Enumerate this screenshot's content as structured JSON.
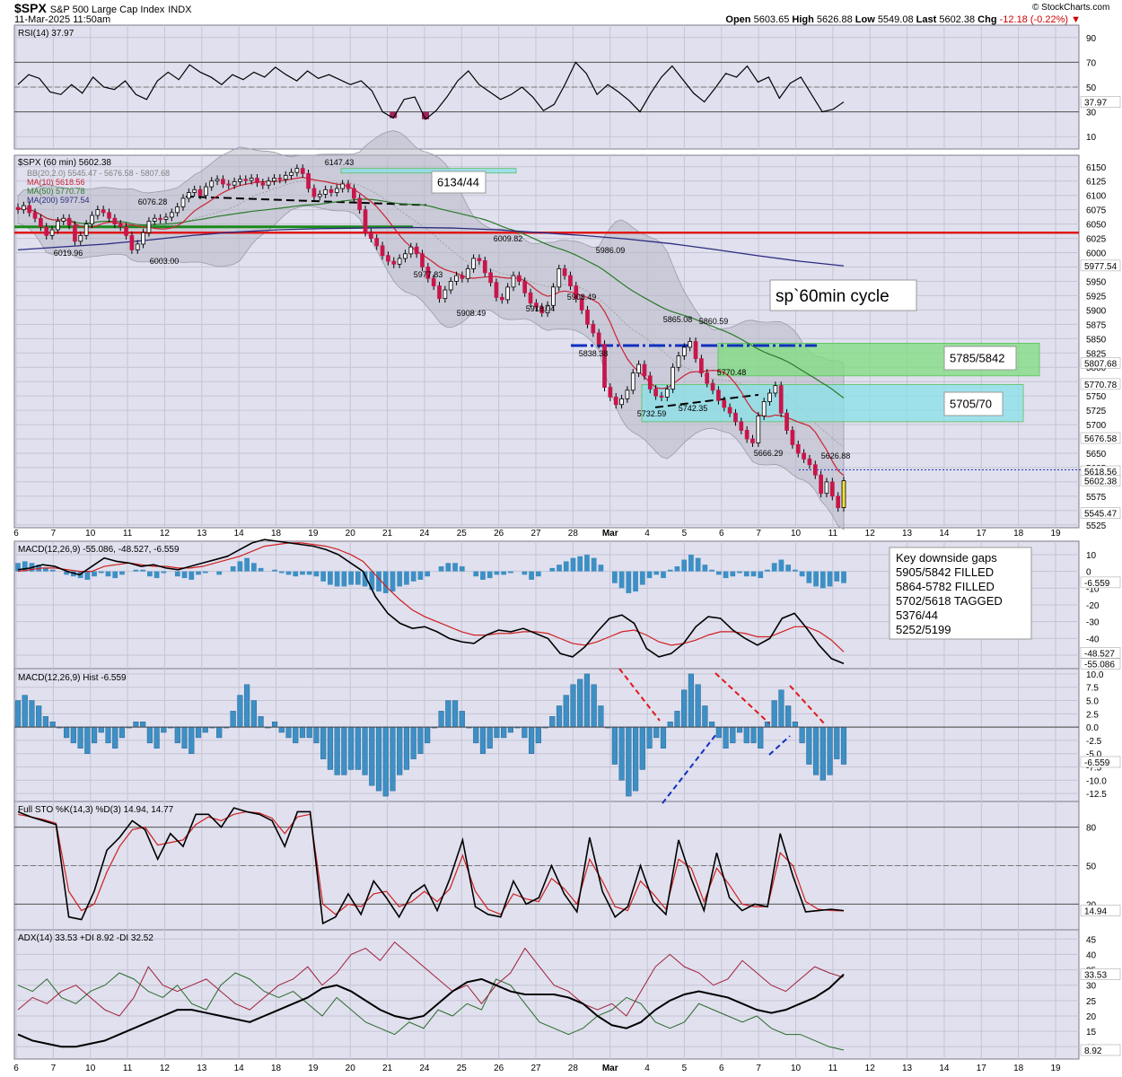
{
  "header": {
    "symbol": "$SPX",
    "name": "S&P 500 Large Cap Index",
    "exchange": "INDX",
    "datetime": "11-Mar-2025 11:50am",
    "open_label": "Open",
    "open": "5603.65",
    "high_label": "High",
    "high": "5626.88",
    "low_label": "Low",
    "low": "5549.08",
    "last_label": "Last",
    "last": "5602.38",
    "chg_label": "Chg",
    "chg": "-12.18 (-0.22%)",
    "copyright": "© StockCharts.com"
  },
  "x_axis_labels": [
    "6",
    "7",
    "10",
    "11",
    "12",
    "13",
    "14",
    "18",
    "19",
    "20",
    "21",
    "24",
    "25",
    "26",
    "27",
    "28",
    "Mar",
    "4",
    "5",
    "6",
    "7",
    "10",
    "11",
    "12",
    "13",
    "14",
    "17",
    "18",
    "19"
  ],
  "colors": {
    "panel_bg": "#e0e0ee",
    "grid": "#c4c4d4",
    "up_candle": "#ffffff",
    "down_candle": "#c8164a",
    "ma10": "#cc2233",
    "ma50": "#2a7a2a",
    "ma200": "#2b2b80",
    "red_level": "#e01818",
    "green_level": "#1a8a1a",
    "blue_level": "#1030c0",
    "hist_bar": "#3d8fc4",
    "green_zone": "#7ddd7d",
    "cyan_zone": "#8ae2e8",
    "rsi_fill": "#a0235a"
  },
  "panels": {
    "rsi": {
      "title": "RSI(14) 37.97",
      "ticks": [
        "90",
        "70",
        "50",
        "30",
        "10"
      ],
      "last_label": "37.97"
    },
    "price": {
      "title": "$SPX (60 min) 5602.38",
      "legend": [
        {
          "text": "BB(20,2.0) 5545.47 - 5676.58 - 5807.68",
          "color": "#808080"
        },
        {
          "text": "MA(10) 5618.56",
          "color": "#cc2233"
        },
        {
          "text": "MA(50) 5770.78",
          "color": "#2a7a2a"
        },
        {
          "text": "MA(200) 5977.54",
          "color": "#2b2b80"
        }
      ],
      "ticks": [
        "6150",
        "6125",
        "6100",
        "6075",
        "6050",
        "6025",
        "6000",
        "5975",
        "5950",
        "5925",
        "5900",
        "5875",
        "5850",
        "5825",
        "5800",
        "5775",
        "5750",
        "5725",
        "5700",
        "5675",
        "5650",
        "5625",
        "5600",
        "5575",
        "5550",
        "5525"
      ],
      "right_labels": [
        "5977.54",
        "5807.68",
        "5770.78",
        "5676.58",
        "5618.56",
        "5602.38",
        "5545.47"
      ],
      "annotations": {
        "box_6134": "6134/44",
        "cycle": "sp`60min cycle",
        "zone_green": "5785/5842",
        "zone_cyan": "5705/70"
      },
      "price_labels": [
        "6147.43",
        "6076.28",
        "6019.96",
        "6003.00",
        "6009.82",
        "5977.83",
        "5908.49",
        "5918.04",
        "5986.09",
        "5903.49",
        "5838.38",
        "5865.08",
        "5860.59",
        "5770.48",
        "5742.35",
        "5732.59",
        "5666.29",
        "5626.88"
      ]
    },
    "macd": {
      "title": "MACD(12,26,9) -55.086, -48.527, -6.559",
      "ticks": [
        "10",
        "0",
        "-10",
        "-20",
        "-30",
        "-40",
        "-50"
      ],
      "right_labels": [
        "-6.559",
        "-48.527",
        "-55.086"
      ],
      "box_lines": [
        "Key downside gaps",
        "5905/5842 FILLED",
        "5864-5782 FILLED",
        "5702/5618 TAGGED",
        "5376/44",
        "5252/5199"
      ]
    },
    "hist": {
      "title": "MACD(12,26,9) Hist -6.559",
      "ticks": [
        "10.0",
        "7.5",
        "5.0",
        "2.5",
        "0.0",
        "-2.5",
        "-5.0",
        "-7.5",
        "-10.0",
        "-12.5"
      ],
      "right_label": "-6.559"
    },
    "sto": {
      "title": "Full STO %K(14,3) %D(3) 14.94, 14.77",
      "ticks": [
        "80",
        "50",
        "20"
      ],
      "right_label": "14.94"
    },
    "adx": {
      "title": "ADX(14) 33.53 +DI 8.92 -DI 32.52",
      "ticks": [
        "45",
        "40",
        "35",
        "30",
        "25",
        "20",
        "15",
        "10"
      ],
      "right_labels": [
        "33.53",
        "8.92"
      ]
    }
  },
  "chart_data": [
    {
      "type": "candlestick",
      "title": "$SPX (60 min) 5602.38",
      "ylim": [
        5520,
        6170
      ],
      "x_axis": "Feb 6 - Mar 11, 2025 (60 min bars)",
      "close_series": [
        6075,
        6082,
        6070,
        6060,
        6045,
        6030,
        6040,
        6055,
        6060,
        6048,
        6020,
        6030,
        6050,
        6065,
        6075,
        6070,
        6060,
        6050,
        6045,
        6030,
        6005,
        6015,
        6035,
        6055,
        6060,
        6058,
        6062,
        6070,
        6080,
        6095,
        6105,
        6110,
        6100,
        6115,
        6125,
        6128,
        6120,
        6118,
        6124,
        6128,
        6126,
        6130,
        6122,
        6118,
        6125,
        6130,
        6128,
        6135,
        6140,
        6147,
        6138,
        6112,
        6098,
        6102,
        6110,
        6105,
        6112,
        6120,
        6112,
        6095,
        6075,
        6035,
        6025,
        6012,
        5995,
        5985,
        5980,
        5990,
        5998,
        6010,
        5998,
        5975,
        5955,
        5942,
        5920,
        5935,
        5950,
        5960,
        5955,
        5972,
        5990,
        5986,
        5965,
        5948,
        5922,
        5918,
        5940,
        5960,
        5950,
        5930,
        5912,
        5905,
        5895,
        5908,
        5940,
        5972,
        5960,
        5942,
        5920,
        5900,
        5875,
        5860,
        5840,
        5765,
        5748,
        5735,
        5745,
        5760,
        5790,
        5805,
        5785,
        5762,
        5750,
        5748,
        5762,
        5800,
        5820,
        5835,
        5845,
        5815,
        5790,
        5772,
        5760,
        5742,
        5730,
        5720,
        5705,
        5690,
        5675,
        5668,
        5715,
        5740,
        5755,
        5768,
        5720,
        5690,
        5665,
        5650,
        5640,
        5630,
        5612,
        5580,
        5600,
        5575,
        5555,
        5602
      ],
      "levels": {
        "red": 6035,
        "green": 6045,
        "blue": 5838
      },
      "ma200": [
        6005,
        6010,
        6015,
        6022,
        6030,
        6036,
        6040,
        6042,
        6043,
        6044,
        6043,
        6040,
        6035,
        6030,
        6024,
        6016,
        6006,
        5995,
        5985,
        5977
      ]
    },
    {
      "type": "line",
      "title": "RSI(14) 37.97",
      "ylim": [
        0,
        100
      ],
      "values": [
        52,
        60,
        57,
        46,
        44,
        52,
        45,
        58,
        50,
        48,
        55,
        44,
        40,
        55,
        62,
        56,
        68,
        62,
        58,
        52,
        60,
        56,
        62,
        58,
        66,
        60,
        55,
        63,
        57,
        60,
        56,
        52,
        55,
        47,
        30,
        25,
        40,
        42,
        24,
        31,
        42,
        55,
        63,
        52,
        46,
        40,
        44,
        50,
        42,
        31,
        36,
        52,
        70,
        61,
        44,
        52,
        46,
        39,
        30,
        45,
        58,
        67,
        56,
        45,
        38,
        49,
        61,
        58,
        67,
        54,
        58,
        41,
        53,
        58,
        44,
        30,
        32,
        38
      ]
    },
    {
      "type": "line",
      "title": "MACD(12,26,9)",
      "ylim": [
        -58,
        18
      ],
      "series": [
        {
          "name": "MACD",
          "values": [
            1,
            2,
            4,
            3,
            0,
            -2,
            3,
            8,
            6,
            5,
            3,
            4,
            2,
            1,
            3,
            5,
            7,
            9,
            13,
            17,
            19,
            18,
            17,
            16,
            15,
            13,
            10,
            5,
            0,
            -15,
            -25,
            -31,
            -34,
            -33,
            -36,
            -40,
            -42,
            -43,
            -38,
            -35,
            -36,
            -34,
            -37,
            -40,
            -49,
            -51,
            -45,
            -36,
            -28,
            -26,
            -31,
            -46,
            -51,
            -49,
            -43,
            -33,
            -27,
            -28,
            -35,
            -40,
            -44,
            -40,
            -28,
            -25,
            -34,
            -44,
            -52,
            -55
          ]
        },
        {
          "name": "Signal",
          "values": [
            0,
            1,
            2,
            2,
            1,
            0,
            0,
            3,
            4,
            5,
            4,
            3,
            3,
            2,
            2,
            3,
            5,
            7,
            9,
            12,
            15,
            16,
            17,
            17,
            16,
            15,
            13,
            10,
            6,
            -2,
            -10,
            -17,
            -23,
            -27,
            -30,
            -33,
            -36,
            -38,
            -38,
            -37,
            -37,
            -36,
            -36,
            -37,
            -40,
            -43,
            -44,
            -42,
            -39,
            -36,
            -35,
            -38,
            -42,
            -44,
            -43,
            -41,
            -38,
            -36,
            -36,
            -37,
            -39,
            -39,
            -36,
            -33,
            -33,
            -36,
            -41,
            -48
          ]
        }
      ]
    },
    {
      "type": "bar",
      "title": "MACD(12,26,9) Hist -6.559",
      "ylim": [
        -14,
        11
      ],
      "values": [
        5,
        6,
        5,
        4,
        2,
        1,
        0,
        -2,
        -3,
        -4,
        -5,
        -3,
        -1,
        -3,
        -4,
        -2,
        0,
        1,
        1,
        -3,
        -4,
        -1,
        0,
        -3,
        -4,
        -5,
        -2,
        -1,
        0,
        -2,
        0,
        3,
        6,
        8,
        5,
        2,
        0,
        1,
        -1,
        -2,
        -3,
        -2,
        -2,
        -3,
        -6,
        -8,
        -9,
        -9,
        -8,
        -8,
        -9,
        -11,
        -12,
        -13,
        -12,
        -9,
        -8,
        -6,
        -5,
        -3,
        0,
        3,
        5,
        5,
        3,
        0,
        -3,
        -5,
        -4,
        -2,
        -2,
        -1,
        0,
        -2,
        -5,
        -3,
        0,
        2,
        4,
        6,
        8,
        9,
        10,
        8,
        4,
        0,
        -7,
        -10,
        -13,
        -12,
        -8,
        -4,
        -2,
        -4,
        1,
        3,
        7,
        10,
        8,
        4,
        1,
        -2,
        -4,
        -3,
        -1,
        -3,
        -3,
        -4,
        1,
        5,
        7,
        4,
        1,
        -3,
        -7,
        -9,
        -10,
        -9,
        -6,
        -7
      ]
    },
    {
      "type": "line",
      "title": "Full STO %K(14,3) %D(3)",
      "ylim": [
        0,
        100
      ],
      "series": [
        {
          "name": "%K",
          "values": [
            92,
            88,
            85,
            82,
            10,
            8,
            30,
            62,
            72,
            85,
            78,
            55,
            75,
            65,
            90,
            90,
            80,
            95,
            92,
            90,
            85,
            65,
            92,
            92,
            5,
            10,
            28,
            12,
            38,
            25,
            10,
            28,
            35,
            15,
            40,
            70,
            18,
            12,
            10,
            38,
            20,
            25,
            50,
            28,
            14,
            72,
            30,
            10,
            18,
            50,
            22,
            12,
            70,
            40,
            15,
            60,
            25,
            15,
            20,
            18,
            75,
            42,
            14,
            15,
            16,
            14.94
          ]
        },
        {
          "name": "%D",
          "values": [
            90,
            88,
            86,
            83,
            30,
            15,
            20,
            45,
            65,
            78,
            80,
            66,
            68,
            70,
            82,
            88,
            85,
            90,
            92,
            91,
            87,
            75,
            88,
            90,
            20,
            12,
            20,
            18,
            28,
            30,
            18,
            22,
            30,
            22,
            32,
            58,
            30,
            16,
            12,
            28,
            24,
            22,
            40,
            32,
            20,
            55,
            38,
            18,
            15,
            38,
            28,
            16,
            55,
            48,
            22,
            48,
            35,
            20,
            18,
            18,
            60,
            50,
            22,
            16,
            15,
            14.77
          ]
        }
      ]
    },
    {
      "type": "line",
      "title": "ADX(14) +DI -DI",
      "ylim": [
        6,
        48
      ],
      "series": [
        {
          "name": "ADX",
          "values": [
            14,
            12,
            11,
            10,
            10,
            11,
            12,
            14,
            16,
            18,
            20,
            22,
            22,
            21,
            20,
            19,
            18,
            20,
            22,
            24,
            26,
            29,
            30,
            28,
            25,
            22,
            20,
            19,
            20,
            24,
            28,
            31,
            32,
            30,
            28,
            27,
            27,
            27,
            26,
            24,
            20,
            17,
            16,
            18,
            22,
            25,
            27,
            28,
            27,
            26,
            24,
            22,
            21,
            22,
            24,
            26,
            29,
            33.53
          ]
        },
        {
          "name": "+DI",
          "values": [
            30,
            28,
            32,
            26,
            24,
            28,
            30,
            34,
            32,
            28,
            26,
            30,
            24,
            22,
            30,
            34,
            32,
            28,
            26,
            28,
            24,
            20,
            26,
            22,
            18,
            16,
            14,
            18,
            16,
            22,
            20,
            24,
            22,
            32,
            30,
            24,
            18,
            16,
            14,
            16,
            20,
            22,
            26,
            24,
            18,
            16,
            18,
            24,
            22,
            20,
            18,
            20,
            16,
            14,
            14,
            12,
            10,
            8.92
          ]
        },
        {
          "name": "-DI",
          "values": [
            22,
            26,
            24,
            28,
            30,
            26,
            22,
            20,
            26,
            36,
            30,
            28,
            30,
            32,
            28,
            24,
            22,
            26,
            30,
            32,
            36,
            30,
            34,
            40,
            42,
            38,
            44,
            40,
            36,
            32,
            28,
            30,
            24,
            30,
            34,
            42,
            36,
            30,
            28,
            24,
            22,
            24,
            20,
            28,
            36,
            40,
            36,
            34,
            30,
            32,
            38,
            34,
            30,
            28,
            32,
            36,
            34,
            32.52
          ]
        }
      ]
    }
  ]
}
